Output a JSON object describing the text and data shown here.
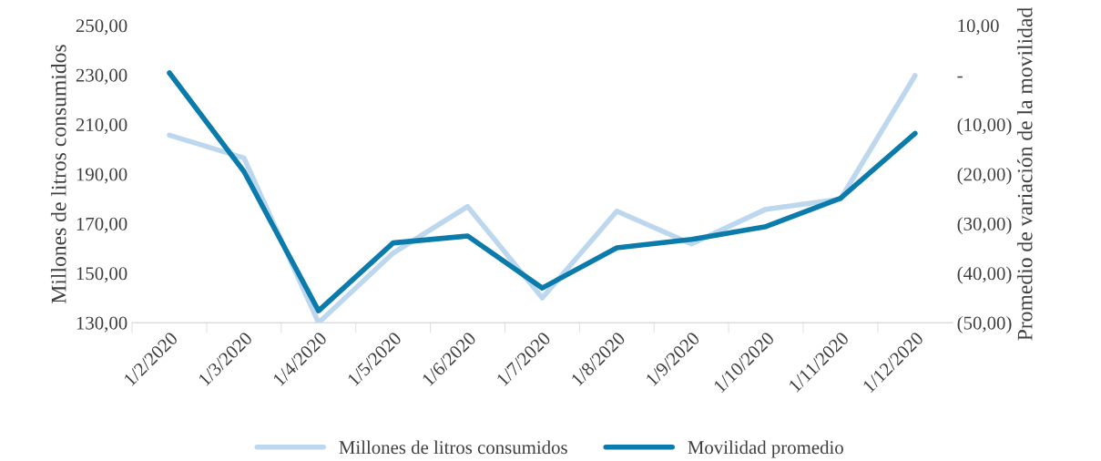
{
  "chart_data": {
    "type": "line",
    "categories": [
      "1/2/2020",
      "1/3/2020",
      "1/4/2020",
      "1/5/2020",
      "1/6/2020",
      "1/7/2020",
      "1/8/2020",
      "1/9/2020",
      "1/10/2020",
      "1/11/2020",
      "1/12/2020"
    ],
    "series": [
      {
        "name": "Millones de litros consumidos",
        "color": "#bdd7ee",
        "values": [
          205.7,
          196.5,
          130,
          158.1,
          176.9,
          140,
          175,
          161.8,
          175.8,
          179.9,
          229.7
        ]
      },
      {
        "name": "Movilidad promedio",
        "color": "#0a7bab",
        "axis": "y2",
        "values": [
          0.4,
          -19.5,
          -47.6,
          -33.9,
          -32.5,
          -43,
          -34.9,
          -33.2,
          -30.6,
          -24.9,
          -11.8
        ]
      }
    ],
    "ylabel": "Millones de litros consumidos",
    "y2label": "Promedio de variación de la movilidad",
    "ylim": [
      130,
      250
    ],
    "yticks": [
      {
        "value": 130,
        "label": "130,00"
      },
      {
        "value": 150,
        "label": "150,00"
      },
      {
        "value": 170,
        "label": "170,00"
      },
      {
        "value": 190,
        "label": "190,00"
      },
      {
        "value": 210,
        "label": "210,00"
      },
      {
        "value": 230,
        "label": "230,00"
      },
      {
        "value": 250,
        "label": "250,00"
      }
    ],
    "y2lim": [
      -50,
      10
    ],
    "y2ticks": [
      {
        "value": -50,
        "label": "(50,00)"
      },
      {
        "value": -40,
        "label": "(40,00)"
      },
      {
        "value": -30,
        "label": "(30,00)"
      },
      {
        "value": -20,
        "label": "(20,00)"
      },
      {
        "value": -10,
        "label": "(10,00)"
      },
      {
        "value": 0,
        "label": "-"
      },
      {
        "value": 10,
        "label": "10,00"
      }
    ],
    "legend": "bottom",
    "grid": false,
    "marker": "none",
    "line_style": "solid"
  }
}
